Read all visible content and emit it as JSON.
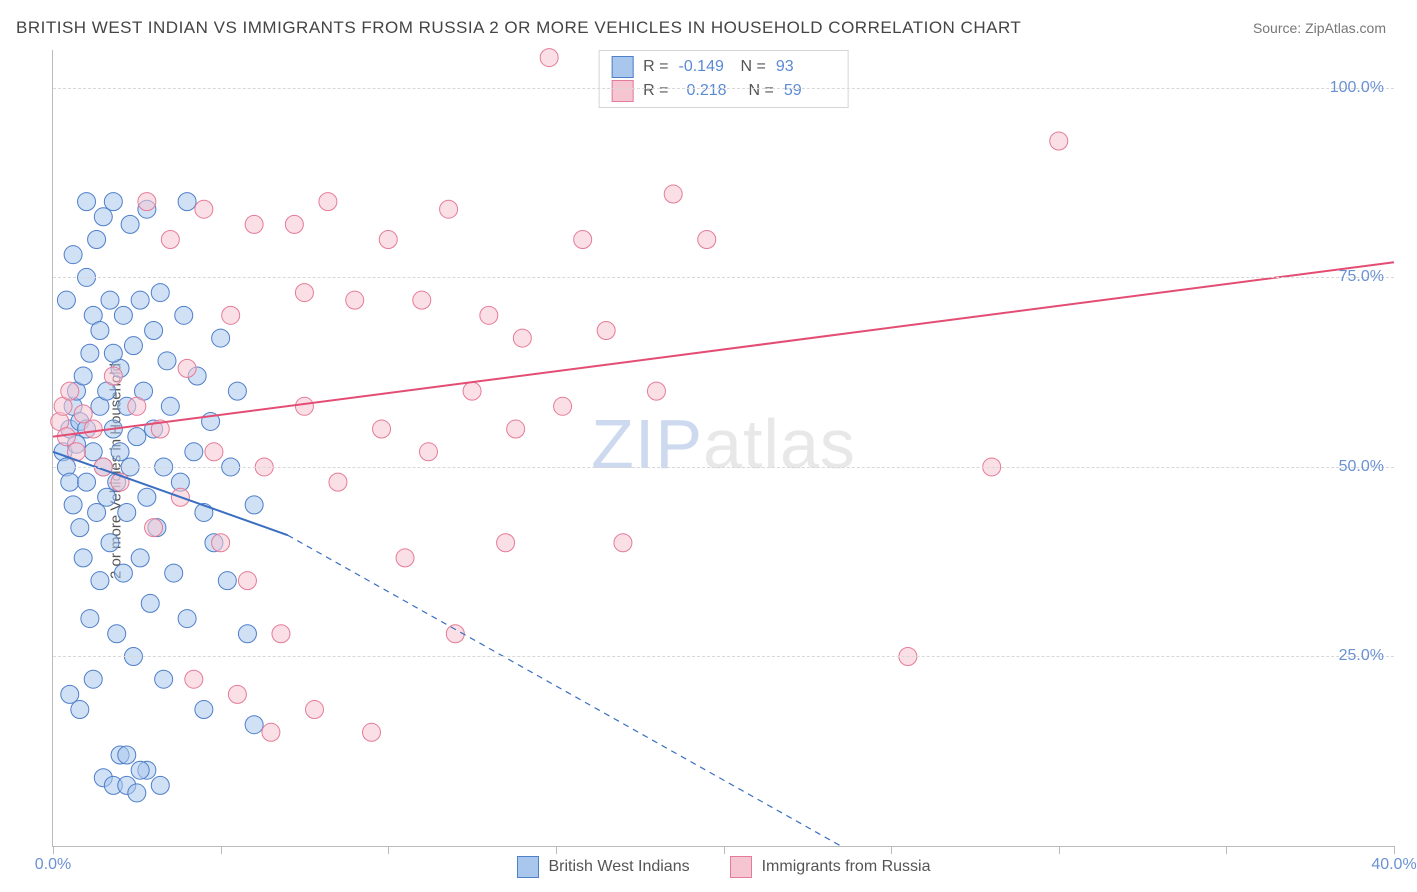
{
  "title": "BRITISH WEST INDIAN VS IMMIGRANTS FROM RUSSIA 2 OR MORE VEHICLES IN HOUSEHOLD CORRELATION CHART",
  "source": "Source: ZipAtlas.com",
  "yaxis_label": "2 or more Vehicles in Household",
  "watermark_a": "ZIP",
  "watermark_b": "atlas",
  "chart": {
    "type": "scatter",
    "xlim": [
      0,
      40
    ],
    "ylim": [
      0,
      105
    ],
    "xticks": [
      0,
      5,
      10,
      15,
      20,
      25,
      30,
      35,
      40
    ],
    "xtick_labels": {
      "0": "0.0%",
      "40": "40.0%"
    },
    "yticks": [
      25,
      50,
      75,
      100
    ],
    "ytick_labels": {
      "25": "25.0%",
      "50": "50.0%",
      "75": "75.0%",
      "100": "100.0%"
    },
    "background_color": "#ffffff",
    "grid_color": "#d8d8d8",
    "axis_color": "#bbbbbb",
    "label_color": "#6a91d4",
    "label_fontsize": 16,
    "title_color": "#444444",
    "title_fontsize": 17,
    "marker_radius": 9,
    "marker_opacity": 0.55,
    "series": [
      {
        "name": "British West Indians",
        "color_fill": "#a9c6ec",
        "color_stroke": "#4f7fc9",
        "R": "-0.149",
        "N": "93",
        "trend": {
          "x1": 0,
          "y1": 52,
          "x2_solid": 7,
          "y2_solid": 41,
          "x2_dash": 23.5,
          "y2_dash": 0,
          "color": "#3a6fc1",
          "width": 2
        },
        "points": [
          [
            0.3,
            52
          ],
          [
            0.4,
            50
          ],
          [
            0.5,
            48
          ],
          [
            0.5,
            55
          ],
          [
            0.6,
            58
          ],
          [
            0.6,
            45
          ],
          [
            0.7,
            60
          ],
          [
            0.7,
            53
          ],
          [
            0.8,
            42
          ],
          [
            0.8,
            56
          ],
          [
            0.9,
            62
          ],
          [
            0.9,
            38
          ],
          [
            1.0,
            85
          ],
          [
            1.0,
            48
          ],
          [
            1.0,
            55
          ],
          [
            1.1,
            30
          ],
          [
            1.1,
            65
          ],
          [
            1.2,
            52
          ],
          [
            1.2,
            70
          ],
          [
            1.3,
            44
          ],
          [
            1.3,
            80
          ],
          [
            1.4,
            58
          ],
          [
            1.4,
            35
          ],
          [
            1.5,
            50
          ],
          [
            1.5,
            83
          ],
          [
            1.6,
            46
          ],
          [
            1.6,
            60
          ],
          [
            1.7,
            72
          ],
          [
            1.7,
            40
          ],
          [
            1.8,
            55
          ],
          [
            1.8,
            85
          ],
          [
            1.9,
            28
          ],
          [
            1.9,
            48
          ],
          [
            2.0,
            63
          ],
          [
            2.0,
            52
          ],
          [
            2.1,
            70
          ],
          [
            2.1,
            36
          ],
          [
            2.2,
            58
          ],
          [
            2.2,
            44
          ],
          [
            2.3,
            82
          ],
          [
            2.3,
            50
          ],
          [
            2.4,
            25
          ],
          [
            2.4,
            66
          ],
          [
            2.5,
            54
          ],
          [
            2.6,
            72
          ],
          [
            2.6,
            38
          ],
          [
            2.7,
            60
          ],
          [
            2.8,
            84
          ],
          [
            2.8,
            46
          ],
          [
            2.9,
            32
          ],
          [
            3.0,
            55
          ],
          [
            3.0,
            68
          ],
          [
            3.1,
            42
          ],
          [
            3.2,
            73
          ],
          [
            3.3,
            50
          ],
          [
            3.3,
            22
          ],
          [
            3.4,
            64
          ],
          [
            3.5,
            58
          ],
          [
            3.6,
            36
          ],
          [
            3.8,
            48
          ],
          [
            3.9,
            70
          ],
          [
            4.0,
            85
          ],
          [
            4.0,
            30
          ],
          [
            4.2,
            52
          ],
          [
            4.3,
            62
          ],
          [
            4.5,
            44
          ],
          [
            4.5,
            18
          ],
          [
            4.7,
            56
          ],
          [
            4.8,
            40
          ],
          [
            5.0,
            67
          ],
          [
            5.2,
            35
          ],
          [
            5.3,
            50
          ],
          [
            5.5,
            60
          ],
          [
            5.8,
            28
          ],
          [
            6.0,
            45
          ],
          [
            6.0,
            16
          ],
          [
            0.5,
            20
          ],
          [
            0.8,
            18
          ],
          [
            1.2,
            22
          ],
          [
            1.5,
            9
          ],
          [
            1.8,
            8
          ],
          [
            2.0,
            12
          ],
          [
            2.2,
            8
          ],
          [
            2.5,
            7
          ],
          [
            2.8,
            10
          ],
          [
            0.4,
            72
          ],
          [
            0.6,
            78
          ],
          [
            1.0,
            75
          ],
          [
            1.4,
            68
          ],
          [
            1.8,
            65
          ],
          [
            2.2,
            12
          ],
          [
            2.6,
            10
          ],
          [
            3.2,
            8
          ]
        ]
      },
      {
        "name": "Immigrants from Russia",
        "color_fill": "#f5c6d2",
        "color_stroke": "#e57b98",
        "R": "0.218",
        "N": "59",
        "trend": {
          "x1": 0,
          "y1": 54,
          "x2_solid": 40,
          "y2_solid": 77,
          "color": "#e34d74",
          "width": 2
        },
        "points": [
          [
            0.2,
            56
          ],
          [
            0.3,
            58
          ],
          [
            0.4,
            54
          ],
          [
            0.5,
            60
          ],
          [
            0.7,
            52
          ],
          [
            0.9,
            57
          ],
          [
            1.2,
            55
          ],
          [
            1.5,
            50
          ],
          [
            1.8,
            62
          ],
          [
            2.0,
            48
          ],
          [
            2.5,
            58
          ],
          [
            2.8,
            85
          ],
          [
            3.0,
            42
          ],
          [
            3.2,
            55
          ],
          [
            3.5,
            80
          ],
          [
            3.8,
            46
          ],
          [
            4.0,
            63
          ],
          [
            4.5,
            84
          ],
          [
            4.8,
            52
          ],
          [
            5.0,
            40
          ],
          [
            5.3,
            70
          ],
          [
            5.8,
            35
          ],
          [
            6.0,
            82
          ],
          [
            6.3,
            50
          ],
          [
            6.8,
            28
          ],
          [
            7.2,
            82
          ],
          [
            7.5,
            73
          ],
          [
            7.8,
            18
          ],
          [
            8.2,
            85
          ],
          [
            8.5,
            48
          ],
          [
            9.0,
            72
          ],
          [
            9.5,
            15
          ],
          [
            10.0,
            80
          ],
          [
            10.5,
            38
          ],
          [
            11.0,
            72
          ],
          [
            11.8,
            84
          ],
          [
            12.0,
            28
          ],
          [
            12.5,
            60
          ],
          [
            13.0,
            70
          ],
          [
            13.5,
            40
          ],
          [
            14.0,
            67
          ],
          [
            14.8,
            104
          ],
          [
            15.2,
            58
          ],
          [
            15.8,
            80
          ],
          [
            16.5,
            68
          ],
          [
            17.0,
            40
          ],
          [
            18.0,
            60
          ],
          [
            18.5,
            86
          ],
          [
            19.5,
            80
          ],
          [
            25.5,
            25
          ],
          [
            28.0,
            50
          ],
          [
            30.0,
            93
          ],
          [
            4.2,
            22
          ],
          [
            5.5,
            20
          ],
          [
            6.5,
            15
          ],
          [
            7.5,
            58
          ],
          [
            9.8,
            55
          ],
          [
            11.2,
            52
          ],
          [
            13.8,
            55
          ]
        ]
      }
    ]
  },
  "legend_stats": {
    "R_label": "R =",
    "N_label": "N ="
  }
}
